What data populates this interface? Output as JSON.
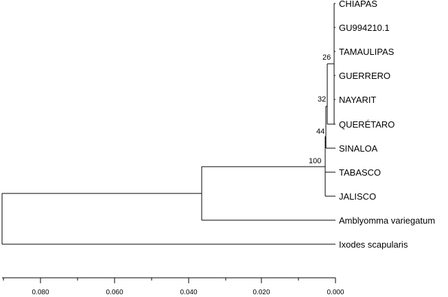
{
  "tree": {
    "taxa": [
      "CHIAPAS",
      "GU994210.1",
      "TAMAULIPAS",
      "GUERRERO",
      "NAYARIT",
      "QUERÉTARO",
      "SINALOA",
      "TABASCO",
      "JALISCO",
      "Amblyomma variegatum",
      "Ixodes scapularis"
    ],
    "bootstrap": [
      "26",
      "32",
      "44",
      "100"
    ]
  },
  "scale": {
    "ticks": [
      "0.080",
      "0.060",
      "0.040",
      "0.020",
      "0.000"
    ]
  }
}
